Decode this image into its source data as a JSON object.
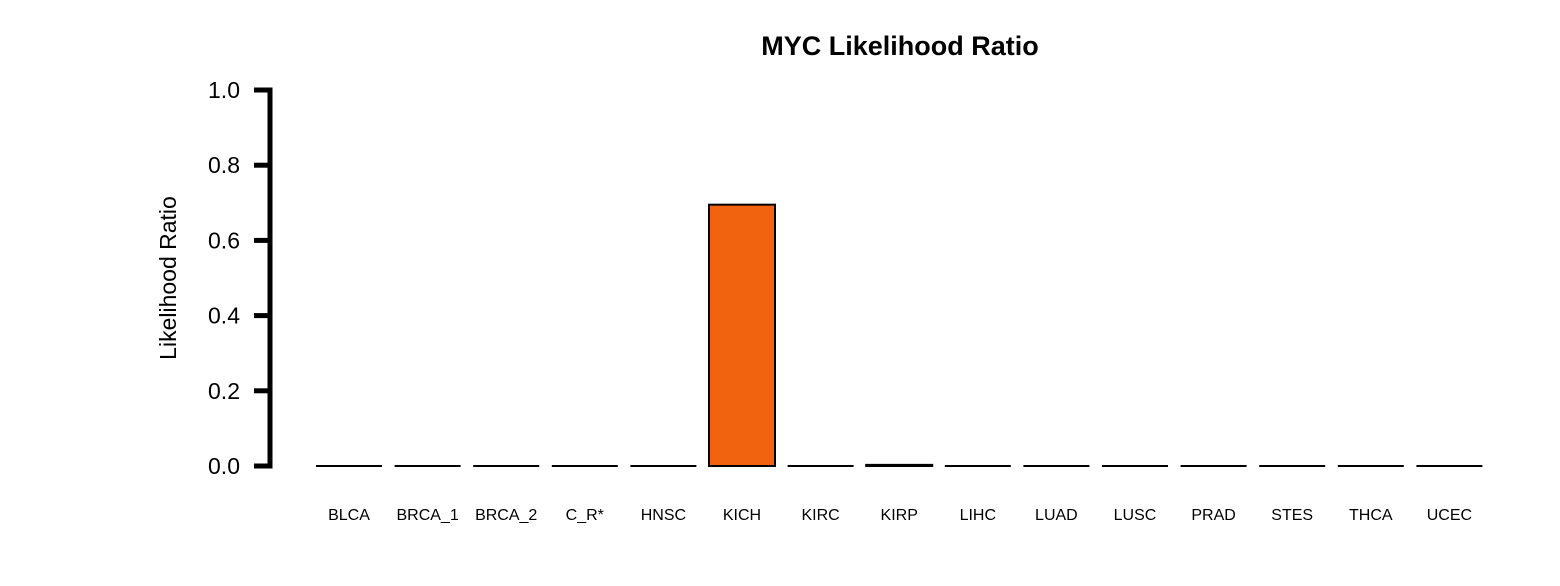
{
  "chart_data": {
    "type": "bar",
    "title": "MYC Likelihood Ratio",
    "xlabel": "",
    "ylabel": "Likelihood Ratio",
    "ylim": [
      0,
      1.0
    ],
    "yticks": [
      "0.0",
      "0.2",
      "0.4",
      "0.6",
      "0.8",
      "1.0"
    ],
    "ytick_values": [
      0,
      0.2,
      0.4,
      0.6,
      0.8,
      1.0
    ],
    "categories": [
      "BLCA",
      "BRCA_1",
      "BRCA_2",
      "C_R*",
      "HNSC",
      "KICH",
      "KIRC",
      "KIRP",
      "LIHC",
      "LUAD",
      "LUSC",
      "PRAD",
      "STES",
      "THCA",
      "UCEC"
    ],
    "values": [
      0.0,
      0.0,
      0.0,
      0.0,
      0.0,
      0.695,
      0.0,
      0.003,
      0.0,
      0.0,
      0.0,
      0.0,
      0.0,
      0.0,
      0.0
    ],
    "colors": {
      "highlight": "#f26310",
      "default": "#f26310",
      "outline": "#000000"
    },
    "grid": false,
    "legend": "none"
  }
}
